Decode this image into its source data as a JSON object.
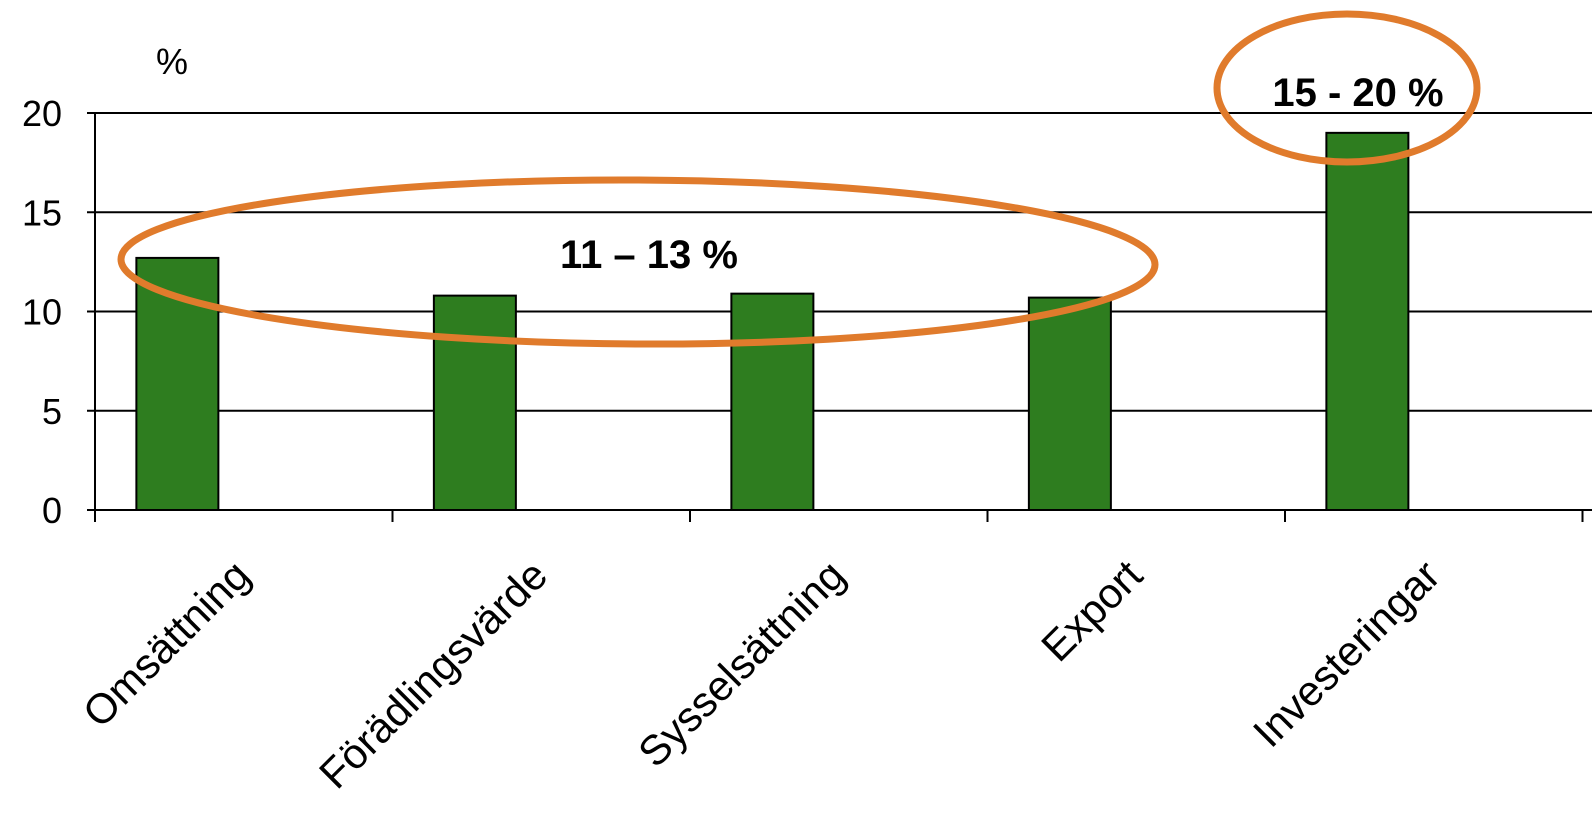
{
  "chart_data": {
    "type": "bar",
    "ylabel": "%",
    "ylim": [
      0,
      20
    ],
    "yticks": [
      0,
      5,
      10,
      15,
      20
    ],
    "grid": true,
    "categories": [
      "Omsättning",
      "Förädlingsvärde",
      "Sysselsättning",
      "Export",
      "Investeringar"
    ],
    "values": [
      12.7,
      10.8,
      10.9,
      10.7,
      19.0
    ],
    "bar_color": "#2e7d1f",
    "annotations": [
      {
        "text": "11 – 13 %",
        "covers": [
          "Omsättning",
          "Förädlingsvärde",
          "Sysselsättning",
          "Export"
        ]
      },
      {
        "text": "15 - 20 %",
        "covers": [
          "Investeringar"
        ]
      }
    ],
    "annotation_color": "#e07b2c"
  }
}
